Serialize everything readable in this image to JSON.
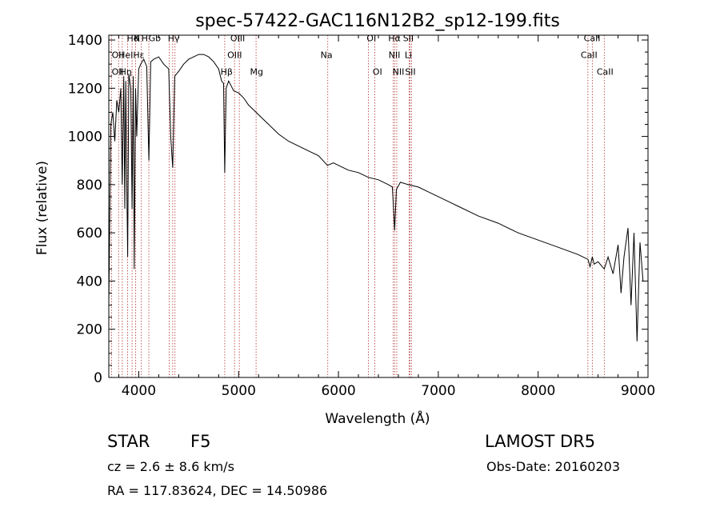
{
  "chart_data": {
    "type": "line",
    "title": "spec-57422-GAC116N12B2_sp12-199.fits",
    "xlabel": "Wavelength (Å)",
    "ylabel": "Flux (relative)",
    "xlim": [
      3700,
      9100
    ],
    "ylim": [
      0,
      1420
    ],
    "xticks": [
      4000,
      5000,
      6000,
      7000,
      8000,
      9000
    ],
    "yticks": [
      0,
      200,
      400,
      600,
      800,
      1000,
      1200,
      1400
    ],
    "grid": false,
    "series": [
      {
        "color": "#000000",
        "x": [
          3700,
          3720,
          3740,
          3760,
          3780,
          3800,
          3820,
          3835,
          3850,
          3860,
          3870,
          3880,
          3889,
          3900,
          3920,
          3933,
          3945,
          3955,
          3968,
          3980,
          4000,
          4020,
          4050,
          4080,
          4101,
          4120,
          4150,
          4200,
          4250,
          4300,
          4320,
          4340,
          4360,
          4400,
          4450,
          4500,
          4550,
          4600,
          4650,
          4700,
          4750,
          4800,
          4830,
          4850,
          4861,
          4875,
          4900,
          4950,
          5000,
          5050,
          5100,
          5150,
          5200,
          5300,
          5400,
          5500,
          5600,
          5700,
          5800,
          5890,
          5950,
          6000,
          6100,
          6200,
          6300,
          6400,
          6500,
          6540,
          6563,
          6580,
          6620,
          6700,
          6800,
          6900,
          7000,
          7200,
          7400,
          7600,
          7800,
          8000,
          8200,
          8400,
          8498,
          8520,
          8542,
          8560,
          8600,
          8662,
          8700,
          8750,
          8800,
          8830,
          8860,
          8900,
          8930,
          8960,
          8990,
          9020,
          9050
        ],
        "y": [
          300,
          1050,
          1100,
          980,
          1150,
          1100,
          1200,
          800,
          1250,
          700,
          1230,
          800,
          500,
          1260,
          1200,
          700,
          1250,
          450,
          1200,
          1000,
          1280,
          1300,
          1320,
          1290,
          900,
          1310,
          1320,
          1330,
          1300,
          1280,
          1000,
          870,
          1250,
          1270,
          1300,
          1320,
          1330,
          1340,
          1340,
          1330,
          1310,
          1280,
          1230,
          1220,
          850,
          1200,
          1230,
          1190,
          1180,
          1160,
          1130,
          1110,
          1090,
          1050,
          1010,
          980,
          960,
          940,
          920,
          880,
          890,
          880,
          860,
          850,
          830,
          820,
          800,
          790,
          610,
          780,
          810,
          800,
          790,
          770,
          750,
          710,
          670,
          640,
          600,
          570,
          540,
          510,
          490,
          460,
          500,
          470,
          480,
          450,
          500,
          430,
          550,
          350,
          500,
          620,
          300,
          600,
          150,
          560,
          400
        ]
      }
    ],
    "lines": [
      3727,
      3798,
      3835,
      3889,
      3933,
      3968,
      4026,
      4101,
      4304,
      4340,
      4363,
      4861,
      4959,
      5007,
      5175,
      5893,
      6300,
      6364,
      6548,
      6563,
      6584,
      6708,
      6717,
      6731,
      8498,
      8542,
      8662
    ],
    "labels": [
      {
        "text": "Hδ",
        "x": 3940,
        "y": 1395
      },
      {
        "text": "K",
        "x": 3980,
        "y": 1395
      },
      {
        "text": "H",
        "x": 4060,
        "y": 1395
      },
      {
        "text": "Gb",
        "x": 4160,
        "y": 1395
      },
      {
        "text": "OII",
        "x": 3790,
        "y": 1325
      },
      {
        "text": "HeI",
        "x": 3870,
        "y": 1325
      },
      {
        "text": "Hε",
        "x": 4000,
        "y": 1325
      },
      {
        "text": "OII",
        "x": 3790,
        "y": 1255
      },
      {
        "text": "Hη",
        "x": 3870,
        "y": 1255
      },
      {
        "text": "Hγ",
        "x": 4350,
        "y": 1395
      },
      {
        "text": "OIII",
        "x": 4990,
        "y": 1395
      },
      {
        "text": "OIII",
        "x": 4960,
        "y": 1325
      },
      {
        "text": "Hβ",
        "x": 4880,
        "y": 1255
      },
      {
        "text": "Mg",
        "x": 5180,
        "y": 1255
      },
      {
        "text": "Na",
        "x": 5880,
        "y": 1325
      },
      {
        "text": "OI",
        "x": 6330,
        "y": 1395
      },
      {
        "text": "OI",
        "x": 6390,
        "y": 1255
      },
      {
        "text": "Hα",
        "x": 6560,
        "y": 1395
      },
      {
        "text": "SII",
        "x": 6700,
        "y": 1395
      },
      {
        "text": "NII",
        "x": 6560,
        "y": 1325
      },
      {
        "text": "Li",
        "x": 6700,
        "y": 1325
      },
      {
        "text": "NII",
        "x": 6600,
        "y": 1255
      },
      {
        "text": "SII",
        "x": 6720,
        "y": 1255
      },
      {
        "text": "CaII",
        "x": 8540,
        "y": 1395
      },
      {
        "text": "CaII",
        "x": 8510,
        "y": 1325
      },
      {
        "text": "CaII",
        "x": 8670,
        "y": 1255
      }
    ]
  },
  "info": {
    "class_label": "STAR",
    "subclass": "F5",
    "survey": "LAMOST DR5",
    "cz": "cz = 2.6 ± 8.6 km/s",
    "obs_date": "Obs-Date: 20160203",
    "coords": "RA = 117.83624, DEC =  14.50986"
  }
}
